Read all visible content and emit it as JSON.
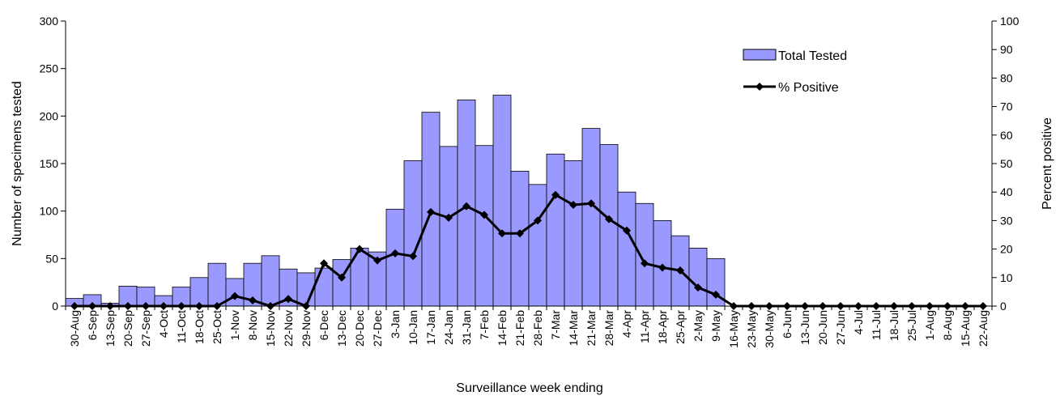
{
  "chart_data": {
    "type": "bar",
    "title": "",
    "xlabel": "Surveillance week ending",
    "ylabel": "Number of specimens tested",
    "y2label": "Percent positive",
    "ylim": [
      0,
      300
    ],
    "y2lim": [
      0,
      100
    ],
    "yticks": [
      0,
      50,
      100,
      150,
      200,
      250,
      300
    ],
    "y2ticks": [
      0,
      10,
      20,
      30,
      40,
      50,
      60,
      70,
      80,
      90,
      100
    ],
    "grid": false,
    "legend_position": "top-right",
    "bar_color": "#9999ff",
    "line_color": "#000000",
    "categories": [
      "30-Aug",
      "6-Sep",
      "13-Sep",
      "20-Sep",
      "27-Sep",
      "4-Oct",
      "11-Oct",
      "18-Oct",
      "25-Oct",
      "1-Nov",
      "8-Nov",
      "15-Nov",
      "22-Nov",
      "29-Nov",
      "6-Dec",
      "13-Dec",
      "20-Dec",
      "27-Dec",
      "3-Jan",
      "10-Jan",
      "17-Jan",
      "24-Jan",
      "31-Jan",
      "7-Feb",
      "14-Feb",
      "21-Feb",
      "28-Feb",
      "7-Mar",
      "14-Mar",
      "21-Mar",
      "28-Mar",
      "4-Apr",
      "11-Apr",
      "18-Apr",
      "25-Apr",
      "2-May",
      "9-May",
      "16-May",
      "23-May",
      "30-May",
      "6-Jun",
      "13-Jun",
      "20-Jun",
      "27-Jun",
      "4-Jul",
      "11-Jul",
      "18-Jul",
      "25-Jul",
      "1-Aug",
      "8-Aug",
      "15-Aug",
      "22-Aug"
    ],
    "series": [
      {
        "name": "Total Tested",
        "type": "bar",
        "axis": "left",
        "values": [
          8,
          12,
          3,
          21,
          20,
          11,
          20,
          30,
          45,
          29,
          45,
          53,
          39,
          35,
          40,
          49,
          61,
          57,
          102,
          153,
          204,
          168,
          217,
          169,
          222,
          142,
          128,
          160,
          153,
          187,
          170,
          120,
          108,
          90,
          74,
          61,
          50,
          0,
          0,
          0,
          0,
          0,
          0,
          0,
          0,
          0,
          0,
          0,
          0,
          0,
          0,
          0
        ]
      },
      {
        "name": "% Positive",
        "type": "line",
        "axis": "right",
        "values": [
          0,
          0,
          0,
          0,
          0,
          0,
          0,
          0,
          0,
          3.5,
          2,
          0,
          2.5,
          0,
          15,
          10,
          20,
          16,
          18.5,
          17.5,
          33,
          31,
          35,
          32,
          25.5,
          25.5,
          30,
          39,
          35.5,
          36,
          30.5,
          26.5,
          15,
          13.5,
          12.5,
          6.5,
          4,
          0,
          0,
          0,
          0,
          0,
          0,
          0,
          0,
          0,
          0,
          0,
          0,
          0,
          0,
          0
        ]
      }
    ]
  }
}
